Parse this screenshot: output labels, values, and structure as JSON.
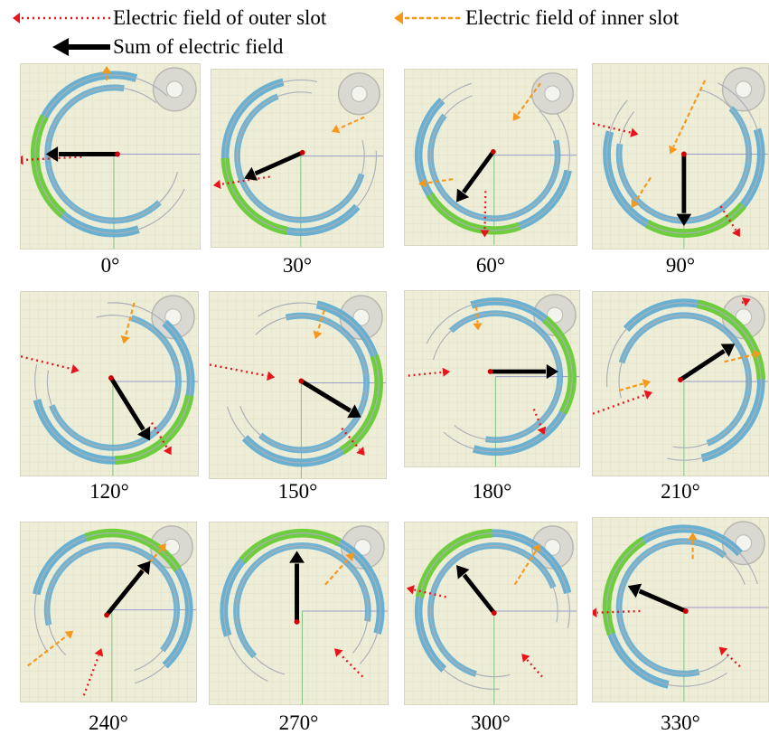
{
  "legend": {
    "outer": "Electric field of outer slot",
    "inner": "Electric field of inner slot",
    "sum": "Sum of electric field"
  },
  "colors": {
    "outer_arrow": "#e8141c",
    "inner_arrow": "#f5981c",
    "sum_arrow": "#000000",
    "panel_bg": "#eeeed8",
    "field_strong": "#6fcf2f",
    "field_weak": "#5ba8d0"
  },
  "panels": [
    {
      "label": "0°",
      "angle": 0
    },
    {
      "label": "30°",
      "angle": 30
    },
    {
      "label": "60°",
      "angle": 60
    },
    {
      "label": "90°",
      "angle": 90
    },
    {
      "label": "120°",
      "angle": 120
    },
    {
      "label": "150°",
      "angle": 150
    },
    {
      "label": "180°",
      "angle": 180
    },
    {
      "label": "210°",
      "angle": 210
    },
    {
      "label": "240°",
      "angle": 240
    },
    {
      "label": "270°",
      "angle": 270
    },
    {
      "label": "300°",
      "angle": 300
    },
    {
      "label": "330°",
      "angle": 330
    }
  ]
}
